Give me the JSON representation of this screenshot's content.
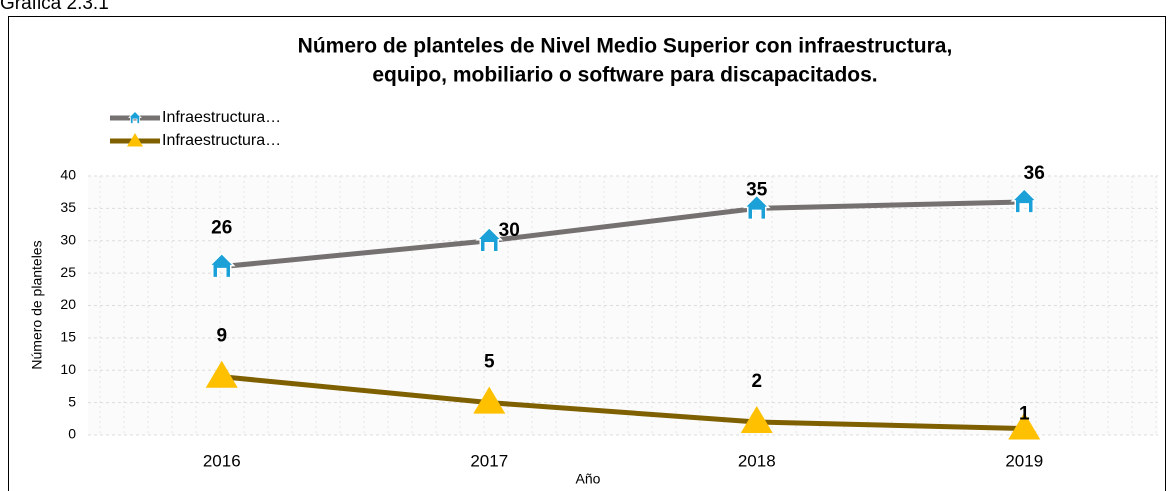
{
  "caption": "Gráfica 2.3.1",
  "chart_data": {
    "type": "line",
    "title": [
      "Número de planteles de Nivel Medio Superior con infraestructura,",
      "equipo, mobiliario o software para discapacitados."
    ],
    "x_label": "Año",
    "y_label": "Número de planteles",
    "categories": [
      "2016",
      "2017",
      "2018",
      "2019"
    ],
    "series": [
      {
        "name": "Infraestructura…",
        "color": "#767171",
        "marker": "house",
        "marker_color": "#1ba1d8",
        "values": [
          26,
          30,
          35,
          36
        ]
      },
      {
        "name": "Infraestructura…",
        "color": "#7f6000",
        "marker": "triangle",
        "marker_color": "#ffc000",
        "values": [
          9,
          5,
          2,
          1
        ]
      }
    ],
    "ylim": [
      0,
      40
    ],
    "yticks": [
      0,
      5,
      10,
      15,
      20,
      25,
      30,
      35,
      40
    ],
    "grid": true,
    "legend": "top-left"
  }
}
